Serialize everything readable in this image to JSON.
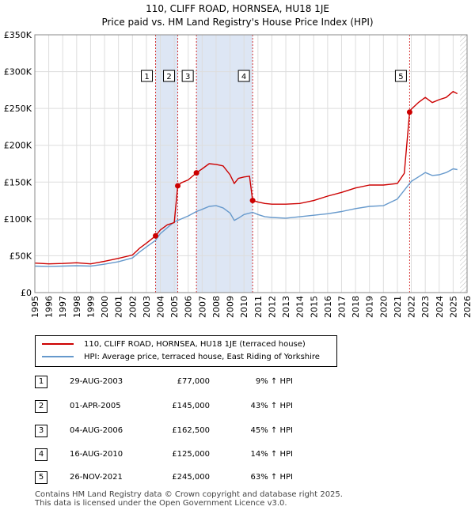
{
  "title_line1": "110, CLIFF ROAD, HORNSEA, HU18 1JE",
  "title_line2": "Price paid vs. HM Land Registry's House Price Index (HPI)",
  "legend": [
    {
      "label": "110, CLIFF ROAD, HORNSEA, HU18 1JE (terraced house)",
      "color": "#cc0000"
    },
    {
      "label": "HPI: Average price, terraced house, East Riding of Yorkshire",
      "color": "#6699cc"
    }
  ],
  "sales": [
    {
      "n": "1",
      "date": "29-AUG-2003",
      "price": "£77,000",
      "hpi": "9% ↑ HPI"
    },
    {
      "n": "2",
      "date": "01-APR-2005",
      "price": "£145,000",
      "hpi": "43% ↑ HPI"
    },
    {
      "n": "3",
      "date": "04-AUG-2006",
      "price": "£162,500",
      "hpi": "45% ↑ HPI"
    },
    {
      "n": "4",
      "date": "16-AUG-2010",
      "price": "£125,000",
      "hpi": "14% ↑ HPI"
    },
    {
      "n": "5",
      "date": "26-NOV-2021",
      "price": "£245,000",
      "hpi": "63% ↑ HPI"
    }
  ],
  "footer_line1": "Contains HM Land Registry data © Crown copyright and database right 2025.",
  "footer_line2": "This data is licensed under the Open Government Licence v3.0.",
  "chart_data": {
    "type": "line",
    "title": "110, CLIFF ROAD, HORNSEA, HU18 1JE",
    "subtitle": "Price paid vs. HM Land Registry's House Price Index (HPI)",
    "xlabel": "",
    "ylabel": "",
    "xlim": [
      1995,
      2026
    ],
    "ylim": [
      0,
      350000
    ],
    "x_ticks": [
      1995,
      1996,
      1997,
      1998,
      1999,
      2000,
      2001,
      2002,
      2003,
      2004,
      2005,
      2006,
      2007,
      2008,
      2009,
      2010,
      2011,
      2012,
      2013,
      2014,
      2015,
      2016,
      2017,
      2018,
      2019,
      2020,
      2021,
      2022,
      2023,
      2024,
      2025,
      2026
    ],
    "y_ticks": [
      0,
      50000,
      100000,
      150000,
      200000,
      250000,
      300000,
      350000
    ],
    "y_tick_labels": [
      "£0",
      "£50K",
      "£100K",
      "£150K",
      "£200K",
      "£250K",
      "£300K",
      "£350K"
    ],
    "grid": true,
    "colors": {
      "property": "#cc0000",
      "hpi": "#6699cc",
      "shade": "#dde6f4",
      "vline": "#cc0000",
      "future_hatch": "#bbbbbb"
    },
    "series": [
      {
        "name": "110, CLIFF ROAD, HORNSEA, HU18 1JE (terraced house)",
        "x": [
          1995.0,
          1996.0,
          1997.0,
          1998.0,
          1999.0,
          2000.0,
          2001.0,
          2002.0,
          2002.5,
          2003.0,
          2003.66,
          2004.0,
          2004.5,
          2005.0,
          2005.25,
          2005.5,
          2006.0,
          2006.59,
          2007.0,
          2007.5,
          2008.0,
          2008.5,
          2009.0,
          2009.3,
          2009.6,
          2010.0,
          2010.4,
          2010.62,
          2011.0,
          2011.5,
          2012.0,
          2013.0,
          2014.0,
          2015.0,
          2016.0,
          2017.0,
          2018.0,
          2019.0,
          2020.0,
          2021.0,
          2021.5,
          2021.88,
          2022.0,
          2022.5,
          2023.0,
          2023.5,
          2024.0,
          2024.5,
          2025.0,
          2025.3
        ],
        "y": [
          40000,
          39000,
          39500,
          40500,
          39000,
          42500,
          46500,
          51000,
          60000,
          67000,
          77000,
          85000,
          92000,
          95000,
          145000,
          149000,
          153000,
          162500,
          168000,
          175000,
          174000,
          172000,
          160000,
          148000,
          155000,
          157000,
          158000,
          125000,
          123000,
          121000,
          120000,
          120000,
          121000,
          125000,
          131000,
          136000,
          142000,
          146000,
          146000,
          148000,
          162000,
          245000,
          249000,
          258000,
          265000,
          258000,
          262000,
          265000,
          273000,
          270000
        ]
      },
      {
        "name": "HPI: Average price, terraced house, East Riding of Yorkshire",
        "x": [
          1995.0,
          1996.0,
          1997.0,
          1998.0,
          1999.0,
          2000.0,
          2001.0,
          2002.0,
          2002.5,
          2003.0,
          2003.66,
          2004.0,
          2004.5,
          2005.0,
          2005.5,
          2006.0,
          2006.59,
          2007.0,
          2007.5,
          2008.0,
          2008.5,
          2009.0,
          2009.3,
          2009.6,
          2010.0,
          2010.62,
          2011.0,
          2011.5,
          2012.0,
          2013.0,
          2014.0,
          2015.0,
          2016.0,
          2017.0,
          2018.0,
          2019.0,
          2020.0,
          2021.0,
          2021.88,
          2022.0,
          2022.5,
          2023.0,
          2023.5,
          2024.0,
          2024.5,
          2025.0,
          2025.3
        ],
        "y": [
          36000,
          35500,
          36000,
          36500,
          36000,
          38500,
          42000,
          47000,
          55000,
          62000,
          71000,
          80000,
          88000,
          96000,
          100000,
          104000,
          110000,
          113000,
          117000,
          118000,
          115000,
          108000,
          98000,
          101000,
          106000,
          109000,
          106000,
          103000,
          102000,
          101000,
          103000,
          105000,
          107000,
          110000,
          114000,
          117000,
          118000,
          127000,
          148000,
          151000,
          157000,
          163000,
          159000,
          160000,
          163000,
          168000,
          167000
        ]
      }
    ],
    "sales": [
      {
        "label": "1",
        "x": 2003.66,
        "y": 77000
      },
      {
        "label": "2",
        "x": 2005.25,
        "y": 145000
      },
      {
        "label": "3",
        "x": 2006.59,
        "y": 162500
      },
      {
        "label": "4",
        "x": 2010.62,
        "y": 125000
      },
      {
        "label": "5",
        "x": 2021.88,
        "y": 245000
      }
    ],
    "future_from": 2025.5
  }
}
